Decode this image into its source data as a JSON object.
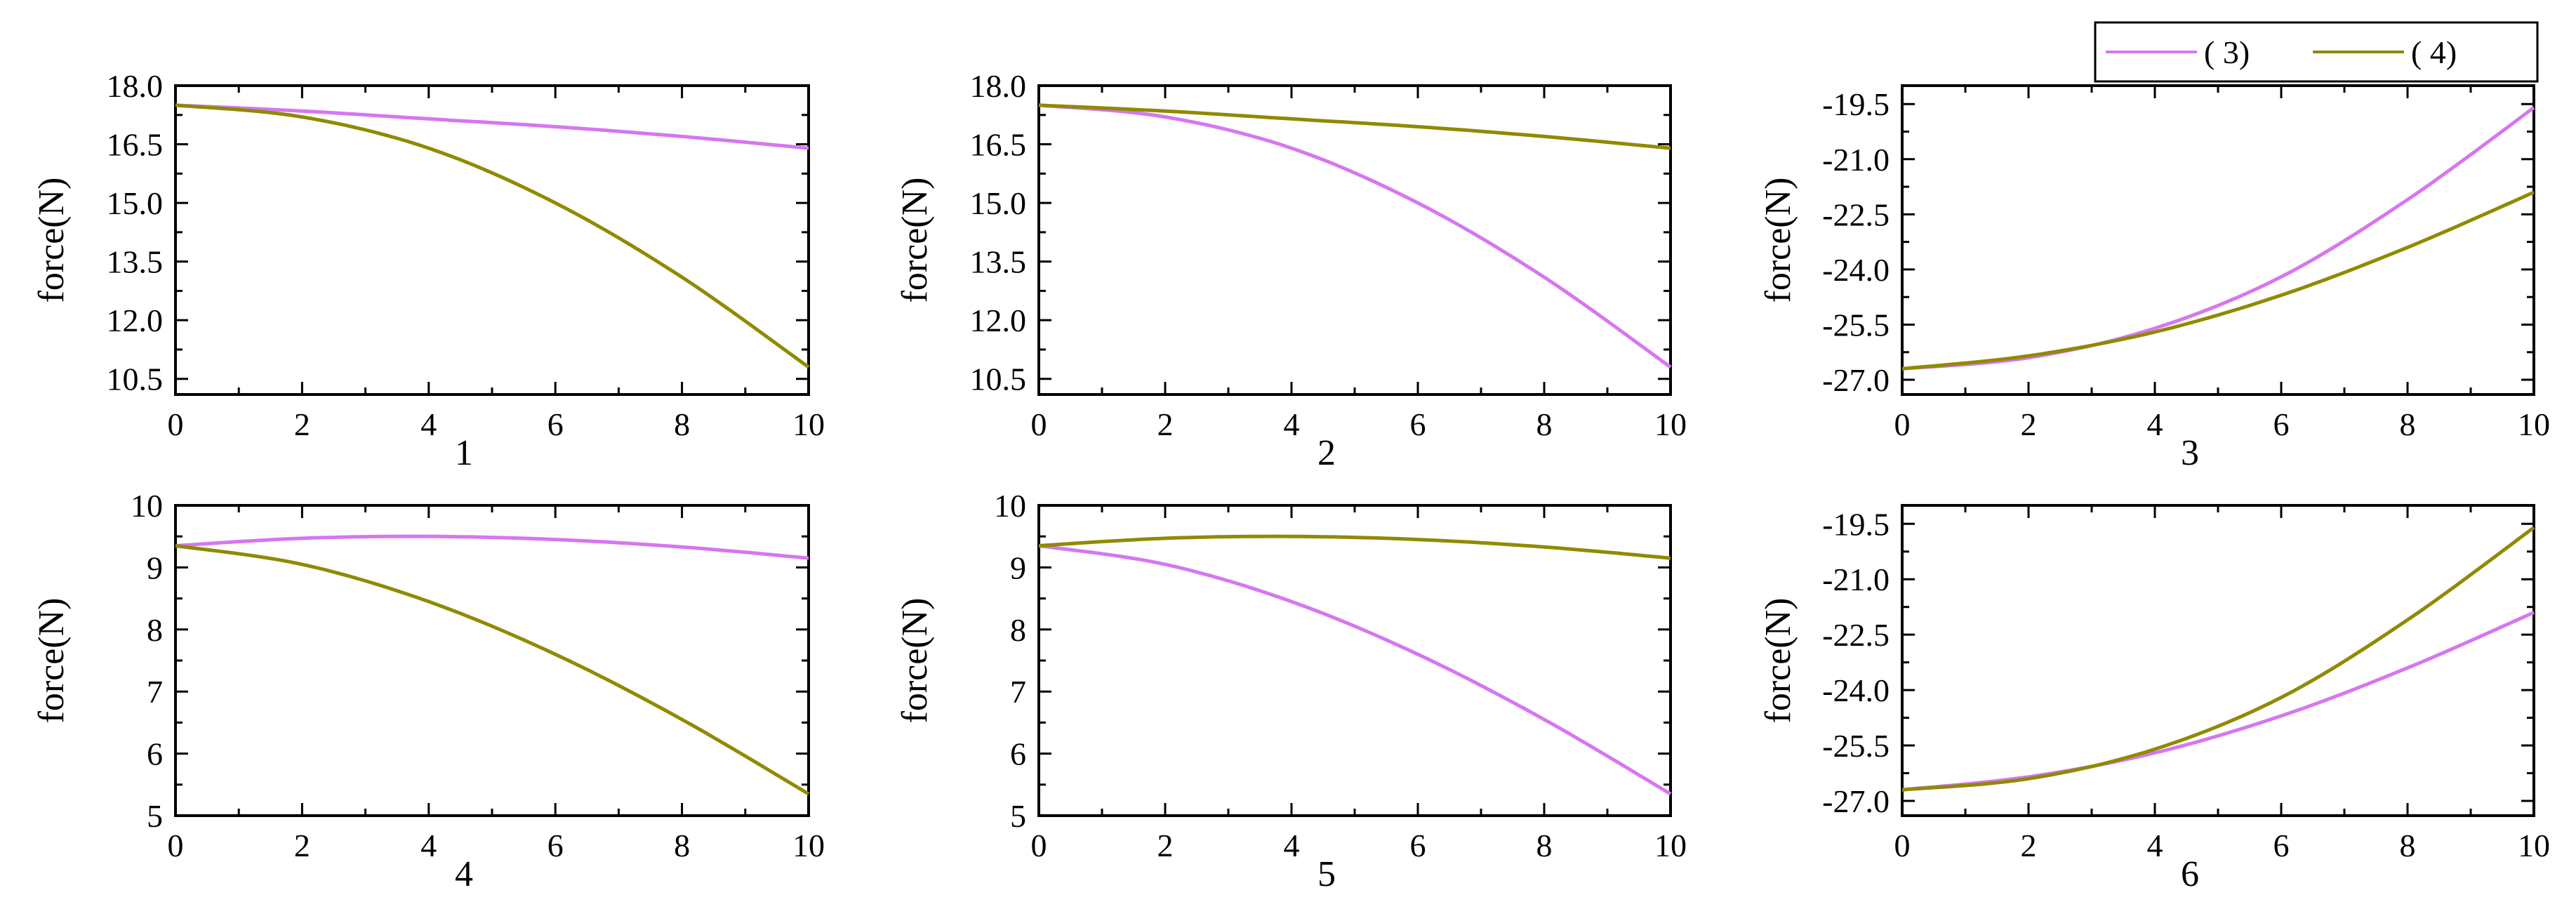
{
  "legend": {
    "entries": [
      {
        "label": "( 3)",
        "color": "#d676f0"
      },
      {
        "label": "( 4)",
        "color": "#8f8a00"
      }
    ]
  },
  "chart_data": [
    {
      "type": "line",
      "panel_label": "1",
      "xlabel": "",
      "ylabel": "force(N)",
      "xlim": [
        0,
        10
      ],
      "ylim": [
        10.1,
        18.0
      ],
      "xticks": [
        "0",
        "2",
        "4",
        "6",
        "8",
        "10"
      ],
      "yticks": [
        "10.5",
        "12.0",
        "13.5",
        "15.0",
        "16.5",
        "18.0"
      ],
      "x": [
        0,
        2,
        4,
        6,
        8,
        10
      ],
      "series": [
        {
          "name": "( 3)",
          "values": [
            17.5,
            17.35,
            17.15,
            16.95,
            16.7,
            16.4
          ]
        },
        {
          "name": "( 4)",
          "values": [
            17.5,
            17.2,
            16.4,
            15.0,
            13.1,
            10.8
          ]
        }
      ]
    },
    {
      "type": "line",
      "panel_label": "2",
      "xlabel": "",
      "ylabel": "force(N)",
      "xlim": [
        0,
        10
      ],
      "ylim": [
        10.1,
        18.0
      ],
      "xticks": [
        "0",
        "2",
        "4",
        "6",
        "8",
        "10"
      ],
      "yticks": [
        "10.5",
        "12.0",
        "13.5",
        "15.0",
        "16.5",
        "18.0"
      ],
      "x": [
        0,
        2,
        4,
        6,
        8,
        10
      ],
      "series": [
        {
          "name": "( 3)",
          "values": [
            17.5,
            17.2,
            16.4,
            15.0,
            13.1,
            10.8
          ]
        },
        {
          "name": "( 4)",
          "values": [
            17.5,
            17.35,
            17.15,
            16.95,
            16.7,
            16.4
          ]
        }
      ]
    },
    {
      "type": "line",
      "panel_label": "3",
      "xlabel": "",
      "ylabel": "force(N)",
      "xlim": [
        0,
        10
      ],
      "ylim": [
        -27.4,
        -19.0
      ],
      "xticks": [
        "0",
        "2",
        "4",
        "6",
        "8",
        "10"
      ],
      "yticks": [
        "-19.5",
        "-21.0",
        "-22.5",
        "-24.0",
        "-25.5",
        "-27.0"
      ],
      "x": [
        0,
        2,
        4,
        6,
        8,
        10
      ],
      "series": [
        {
          "name": "( 3)",
          "values": [
            -26.7,
            -26.4,
            -25.6,
            -24.2,
            -22.1,
            -19.6
          ]
        },
        {
          "name": "( 4)",
          "values": [
            -26.7,
            -26.35,
            -25.7,
            -24.7,
            -23.4,
            -21.9
          ]
        }
      ]
    },
    {
      "type": "line",
      "panel_label": "4",
      "xlabel": "",
      "ylabel": "force(N)",
      "xlim": [
        0,
        10
      ],
      "ylim": [
        5,
        10
      ],
      "xticks": [
        "0",
        "2",
        "4",
        "6",
        "8",
        "10"
      ],
      "yticks": [
        "5",
        "6",
        "7",
        "8",
        "9",
        "10"
      ],
      "x": [
        0,
        2,
        4,
        6,
        8,
        10
      ],
      "series": [
        {
          "name": "( 3)",
          "values": [
            9.35,
            9.47,
            9.5,
            9.45,
            9.33,
            9.15
          ]
        },
        {
          "name": "( 4)",
          "values": [
            9.35,
            9.05,
            8.45,
            7.6,
            6.55,
            5.35
          ]
        }
      ]
    },
    {
      "type": "line",
      "panel_label": "5",
      "xlabel": "",
      "ylabel": "force(N)",
      "xlim": [
        0,
        10
      ],
      "ylim": [
        5,
        10
      ],
      "xticks": [
        "0",
        "2",
        "4",
        "6",
        "8",
        "10"
      ],
      "yticks": [
        "5",
        "6",
        "7",
        "8",
        "9",
        "10"
      ],
      "x": [
        0,
        2,
        4,
        6,
        8,
        10
      ],
      "series": [
        {
          "name": "( 3)",
          "values": [
            9.35,
            9.05,
            8.45,
            7.6,
            6.55,
            5.35
          ]
        },
        {
          "name": "( 4)",
          "values": [
            9.35,
            9.47,
            9.5,
            9.45,
            9.33,
            9.15
          ]
        }
      ]
    },
    {
      "type": "line",
      "panel_label": "6",
      "xlabel": "",
      "ylabel": "force(N)",
      "xlim": [
        0,
        10
      ],
      "ylim": [
        -27.4,
        -19.0
      ],
      "xticks": [
        "0",
        "2",
        "4",
        "6",
        "8",
        "10"
      ],
      "yticks": [
        "-19.5",
        "-21.0",
        "-22.5",
        "-24.0",
        "-25.5",
        "-27.0"
      ],
      "x": [
        0,
        2,
        4,
        6,
        8,
        10
      ],
      "series": [
        {
          "name": "( 3)",
          "values": [
            -26.7,
            -26.35,
            -25.7,
            -24.7,
            -23.4,
            -21.9
          ]
        },
        {
          "name": "( 4)",
          "values": [
            -26.7,
            -26.4,
            -25.6,
            -24.2,
            -22.1,
            -19.6
          ]
        }
      ]
    }
  ]
}
